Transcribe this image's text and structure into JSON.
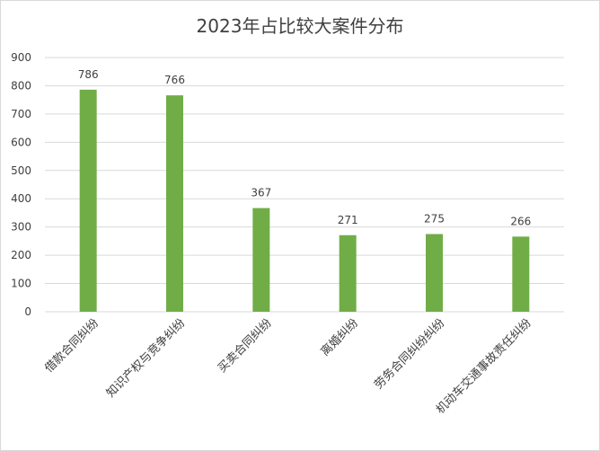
{
  "chart_data": {
    "type": "bar",
    "title": "2023年占比较大案件分布",
    "categories": [
      "借款合同纠纷",
      "知识产权与竞争纠纷",
      "买卖合同纠纷",
      "离婚纠纷",
      "劳务合同纠纷纠纷",
      "机动车交通事故责任纠纷"
    ],
    "values": [
      786,
      766,
      367,
      271,
      275,
      266
    ],
    "ylim": [
      0,
      900
    ],
    "yticks": [
      0,
      100,
      200,
      300,
      400,
      500,
      600,
      700,
      800,
      900
    ],
    "xlabel": "",
    "ylabel": "",
    "grid": true,
    "legend": "none",
    "bar_color": "#70ad47",
    "grid_color": "#d9d9d9",
    "show_data_labels": true
  }
}
